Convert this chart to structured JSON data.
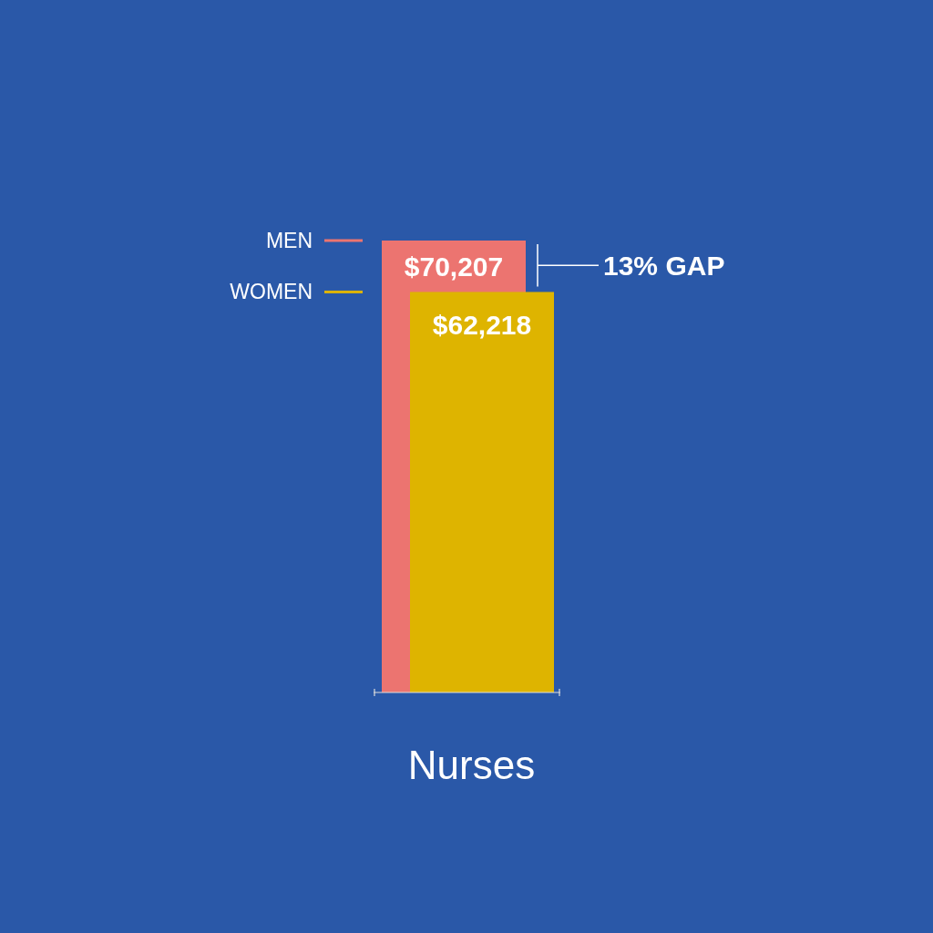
{
  "chart_data": {
    "type": "bar",
    "categories": [
      "Nurses"
    ],
    "series": [
      {
        "name": "MEN",
        "color": "#ec7470",
        "values": [
          70207
        ],
        "value_labels": [
          "$70,207"
        ]
      },
      {
        "name": "WOMEN",
        "color": "#deb400",
        "values": [
          62218
        ],
        "value_labels": [
          "$62,218"
        ]
      }
    ],
    "annotations": [
      "13% GAP"
    ],
    "legend": "left"
  }
}
